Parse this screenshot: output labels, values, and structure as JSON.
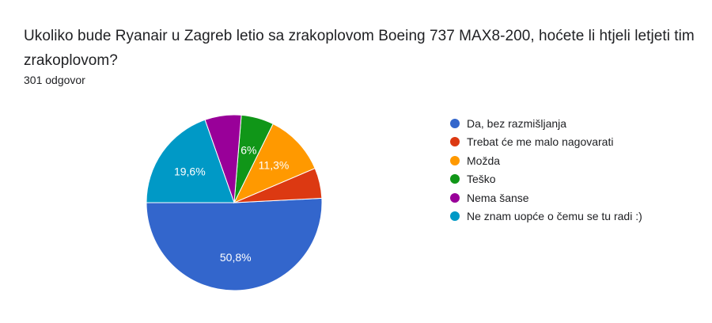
{
  "question": {
    "title": "Ukoliko bude Ryanair u Zagreb letio sa zrakoplovom Boeing 737 MAX8-200, hoćete li htjeli letjeti tim zrakoplovom?",
    "response_count": "301 odgovor"
  },
  "chart_data": {
    "type": "pie",
    "categories": [
      "Da, bez razmišljanja",
      "Trebat će me malo nagovarati",
      "Možda",
      "Teško",
      "Nema šanse",
      "Ne znam uopće o čemu se tu radi :)"
    ],
    "values": [
      50.8,
      5.6,
      11.3,
      6.0,
      6.7,
      19.6
    ],
    "data_labels": [
      "50,8%",
      "",
      "11,3%",
      "6%",
      "",
      "19,6%"
    ],
    "colors": [
      "#3366cc",
      "#dc3912",
      "#ff9900",
      "#109618",
      "#990099",
      "#0099c6"
    ],
    "legend_position": "right"
  }
}
